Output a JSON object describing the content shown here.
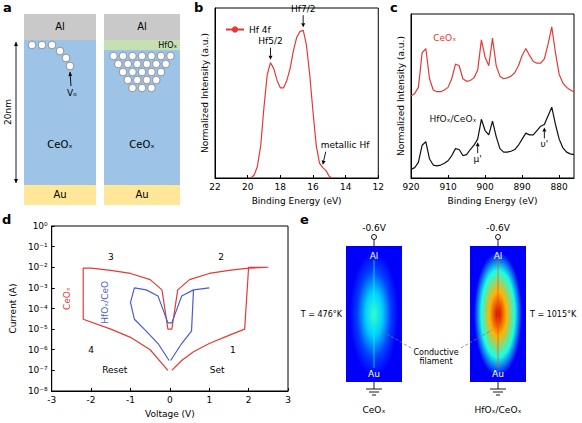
{
  "chart_data": [
    {
      "panel": "b",
      "type": "line",
      "x_label": "Binding Energy (eV)",
      "y_label": "Normalized Intensity (a.u.)",
      "xlim": [
        22,
        12
      ],
      "xticks": [
        22,
        20,
        18,
        16,
        14,
        12
      ],
      "ylim": [
        0,
        1.15
      ],
      "tick_labels": "x",
      "legend": "upper left",
      "series": [
        {
          "name": "Hf 4f",
          "color": "#e53935",
          "x": [
            19.8,
            19.6,
            19.4,
            19.2,
            19.0,
            18.8,
            18.6,
            18.4,
            18.2,
            18.0,
            17.8,
            17.6,
            17.4,
            17.2,
            17.0,
            16.8,
            16.6,
            16.4,
            16.2,
            16.0,
            15.8,
            15.6,
            15.4,
            15.2,
            15.0,
            14.8
          ],
          "values": [
            0.0,
            0.02,
            0.08,
            0.22,
            0.48,
            0.7,
            0.78,
            0.74,
            0.66,
            0.61,
            0.61,
            0.66,
            0.74,
            0.86,
            0.95,
            0.99,
            1.0,
            0.9,
            0.7,
            0.45,
            0.22,
            0.1,
            0.07,
            0.05,
            0.01,
            0.0
          ]
        }
      ],
      "annotations": [
        {
          "text": "Hf5/2",
          "x": 18.6,
          "y": 0.78
        },
        {
          "text": "Hf7/2",
          "x": 16.6,
          "y": 1.0
        },
        {
          "text": "metallic Hf",
          "x": 15.4,
          "y": 0.07
        }
      ]
    },
    {
      "panel": "c",
      "type": "line",
      "x_label": "Binding Energy (eV)",
      "y_label": "Normalized Intensity (a.u.)",
      "xlim": [
        920,
        876
      ],
      "xticks": [
        920,
        910,
        900,
        890,
        880
      ],
      "ylim": [
        0,
        1.9
      ],
      "tick_labels": "x",
      "series": [
        {
          "name": "CeOₓ",
          "color": "#e53935",
          "x": [
            920,
            919,
            918,
            917,
            916,
            915,
            914,
            913,
            912,
            911,
            910,
            909,
            908,
            907,
            906,
            905,
            904,
            903,
            902,
            901,
            900,
            899,
            898,
            897,
            896,
            895,
            894,
            893,
            892,
            891,
            890,
            889,
            888,
            887,
            886,
            885,
            884,
            883,
            882,
            881,
            880,
            879,
            878,
            877,
            876
          ],
          "values": [
            0.95,
            0.98,
            1.05,
            1.45,
            1.5,
            1.15,
            1.02,
            1.0,
            1.0,
            1.02,
            1.05,
            1.15,
            1.32,
            1.3,
            1.15,
            1.12,
            1.13,
            1.16,
            1.25,
            1.6,
            1.4,
            1.3,
            1.62,
            1.3,
            1.18,
            1.15,
            1.16,
            1.18,
            1.22,
            1.3,
            1.42,
            1.5,
            1.42,
            1.35,
            1.33,
            1.33,
            1.38,
            1.55,
            1.75,
            1.45,
            1.2,
            1.1,
            1.05,
            1.02,
            1.0
          ]
        },
        {
          "name": "HfOₓ/CeOₓ",
          "color": "#111111",
          "x": [
            920,
            919,
            918,
            917,
            916,
            915,
            914,
            913,
            912,
            911,
            910,
            909,
            908,
            907,
            906,
            905,
            904,
            903,
            902,
            901,
            900,
            899,
            898,
            897,
            896,
            895,
            894,
            893,
            892,
            891,
            890,
            889,
            888,
            887,
            886,
            885,
            884,
            883,
            882,
            881,
            880,
            879,
            878,
            877,
            876
          ],
          "values": [
            0.1,
            0.12,
            0.18,
            0.38,
            0.42,
            0.22,
            0.15,
            0.14,
            0.15,
            0.17,
            0.2,
            0.26,
            0.34,
            0.33,
            0.26,
            0.27,
            0.33,
            0.38,
            0.45,
            0.68,
            0.55,
            0.5,
            0.66,
            0.48,
            0.34,
            0.3,
            0.3,
            0.31,
            0.33,
            0.38,
            0.45,
            0.52,
            0.5,
            0.5,
            0.55,
            0.6,
            0.62,
            0.72,
            0.82,
            0.62,
            0.45,
            0.35,
            0.3,
            0.28,
            0.27
          ]
        }
      ],
      "series_labels": [
        {
          "series": 0,
          "x": 914,
          "y": 1.62
        },
        {
          "series": 1,
          "x": 915,
          "y": 0.68
        }
      ],
      "annotations": [
        {
          "text": "μ'",
          "x": 902,
          "y": 0.45
        },
        {
          "text": "υ'",
          "x": 884,
          "y": 0.62
        }
      ]
    },
    {
      "panel": "d",
      "type": "line",
      "log": "y",
      "x_label": "Voltage (V)",
      "y_label": "Current (A)",
      "xlim": [
        -3,
        3
      ],
      "xticks": [
        -3,
        -2,
        -1,
        0,
        1,
        2,
        3
      ],
      "ylim": [
        1e-08,
        1
      ],
      "yticks": [
        {
          "value": 1e-08,
          "label": "10⁻⁸"
        },
        {
          "value": 1e-07,
          "label": "10⁻⁷"
        },
        {
          "value": 1e-06,
          "label": "10⁻⁶"
        },
        {
          "value": 1e-05,
          "label": "10⁻⁵"
        },
        {
          "value": 0.0001,
          "label": "10⁻⁴"
        },
        {
          "value": 0.001,
          "label": "10⁻³"
        },
        {
          "value": 0.01,
          "label": "10⁻²"
        },
        {
          "value": 0.1,
          "label": "10⁻¹"
        },
        {
          "value": 1,
          "label": "10⁰"
        }
      ],
      "series": [
        {
          "name": "CeOₓ",
          "color": "#e53935",
          "x": [
            0.05,
            0.3,
            0.6,
            1.0,
            1.5,
            1.9,
            2.0,
            2.5,
            2.0,
            1.5,
            1.0,
            0.5,
            0.2,
            0.05,
            -0.05,
            -0.2,
            -0.5,
            -1.0,
            -1.5,
            -2.0,
            -2.2,
            -2.2,
            -1.5,
            -1.0,
            -0.5,
            -0.05
          ],
          "values": [
            1e-07,
            3e-07,
            8e-07,
            2e-06,
            5e-06,
            1e-05,
            0.01,
            0.01,
            0.009,
            0.007,
            0.005,
            0.0025,
            0.0008,
            1e-05,
            1e-05,
            0.0008,
            0.0025,
            0.005,
            0.007,
            0.009,
            0.009,
            3e-05,
            1e-05,
            4e-06,
            1e-06,
            1e-07
          ]
        },
        {
          "name": "HfOₓ/CeO",
          "color": "#4a5bd4",
          "x": [
            0.02,
            0.3,
            0.55,
            0.6,
            1.0,
            0.6,
            0.3,
            0.05,
            -0.05,
            -0.3,
            -0.6,
            -0.9,
            -1.0,
            -0.9,
            -0.6,
            -0.3,
            -0.02
          ],
          "values": [
            3e-07,
            2e-06,
            8e-06,
            0.0008,
            0.001,
            0.0008,
            0.0004,
            2e-05,
            2e-05,
            0.0004,
            0.0008,
            0.001,
            0.0002,
            3e-05,
            8e-06,
            2e-06,
            3e-07
          ]
        }
      ],
      "series_labels": [
        {
          "series": 0,
          "x": -2.6,
          "y": 0.0003
        },
        {
          "series": 1,
          "x": -1.65,
          "y": 0.0002
        }
      ],
      "labels": [
        {
          "text": "1",
          "x": 1.6,
          "y": 1e-06
        },
        {
          "text": "2",
          "x": 1.3,
          "y": 0.03
        },
        {
          "text": "3",
          "x": -1.5,
          "y": 0.03
        },
        {
          "text": "4",
          "x": -2.0,
          "y": 1e-06
        },
        {
          "text": "Set",
          "x": 1.2,
          "y": 1e-07
        },
        {
          "text": "Reset",
          "x": -1.4,
          "y": 1e-07
        }
      ]
    }
  ],
  "diagrams": {
    "a": {
      "panel": "a",
      "thickness": "20nm",
      "top_electrode": "Al",
      "oxide": "CeOₓ",
      "bottom_electrode": "Au",
      "vacancy": "Vₒ",
      "interlayer": "HfOₓ"
    },
    "e": {
      "panel": "e",
      "voltage": "-0.6V",
      "top_electrode": "Al",
      "bottom_electrode": "Au",
      "filament": "Conductive filament",
      "devices": [
        {
          "name": "CeOₓ",
          "temperature": {
            "value": 476,
            "label": "T = 476°K"
          }
        },
        {
          "name": "HfOₓ/CeOₓ",
          "temperature": {
            "value": 1015,
            "label": "T = 1015°K"
          }
        }
      ]
    }
  }
}
